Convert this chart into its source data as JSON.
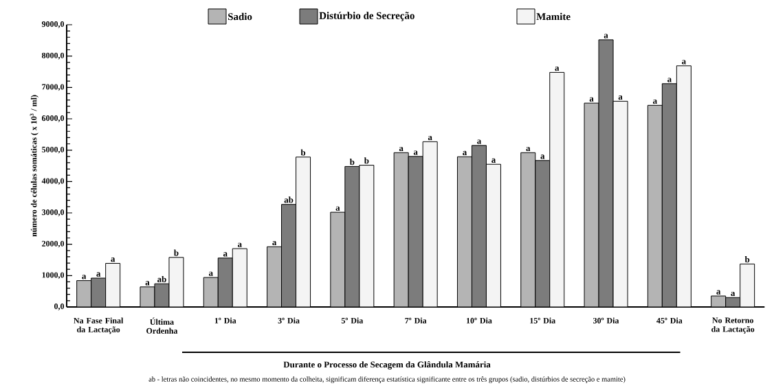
{
  "chart_data": {
    "type": "bar",
    "categories": [
      "Na Fase Final da Lactação",
      "Última Ordenha",
      "1º Dia",
      "3º Dia",
      "5º Dia",
      "7º Dia",
      "10º Dia",
      "15º Dia",
      "30º Dia",
      "45º Dia",
      "No Retorno da Lactação"
    ],
    "series": [
      {
        "name": "Sadio",
        "color": "#b4b4b4",
        "values": [
          840,
          640,
          940,
          1920,
          3020,
          4920,
          4790,
          4920,
          6500,
          6430,
          350
        ],
        "value_labels": [
          "a",
          "a",
          "a",
          "a",
          "a",
          "a",
          "a",
          "a",
          "a",
          "a",
          "a"
        ]
      },
      {
        "name": "Distúrbio de Secreção",
        "color": "#7c7c7c",
        "values": [
          920,
          740,
          1560,
          3270,
          4480,
          4800,
          5150,
          4670,
          8520,
          7120,
          300
        ],
        "value_labels": [
          "a",
          "ab",
          "a",
          "ab",
          "b",
          "a",
          "a",
          "a",
          "a",
          "a",
          "a"
        ]
      },
      {
        "name": "Mamite",
        "color": "#f4f4f4",
        "values": [
          1390,
          1580,
          1860,
          4780,
          4520,
          5270,
          4550,
          7480,
          6560,
          7690,
          1370
        ],
        "value_labels": [
          "a",
          "b",
          "a",
          "b",
          "b",
          "a",
          "a",
          "a",
          "a",
          "a",
          "b"
        ]
      }
    ],
    "ylabel": "número de células somáticas ( x 10$^{3}$ / ml)",
    "ylim": [
      0,
      9000
    ],
    "yticks": [
      {
        "value": 0,
        "label": "0,0"
      },
      {
        "value": 1000,
        "label": "1000,0"
      },
      {
        "value": 2000,
        "label": "2000,0"
      },
      {
        "value": 3000,
        "label": "3000,0"
      },
      {
        "value": 4000,
        "label": "4000,0"
      },
      {
        "value": 5000,
        "label": "5000,0"
      },
      {
        "value": 6000,
        "label": "6000,0"
      },
      {
        "value": 7000,
        "label": "7000,0"
      },
      {
        "value": 8000,
        "label": "8000,0"
      },
      {
        "value": 9000,
        "label": "9000,0"
      }
    ],
    "legend": "top",
    "grid": false,
    "annotations": [
      "Durante o Processo de Secagem da Glândula Mamária",
      "ab - letras não coincidentes, no mesmo momento da colheita, significam diferença estatística significante entre os três grupos (sadio, distúrbios de secreção e mamite)"
    ]
  }
}
